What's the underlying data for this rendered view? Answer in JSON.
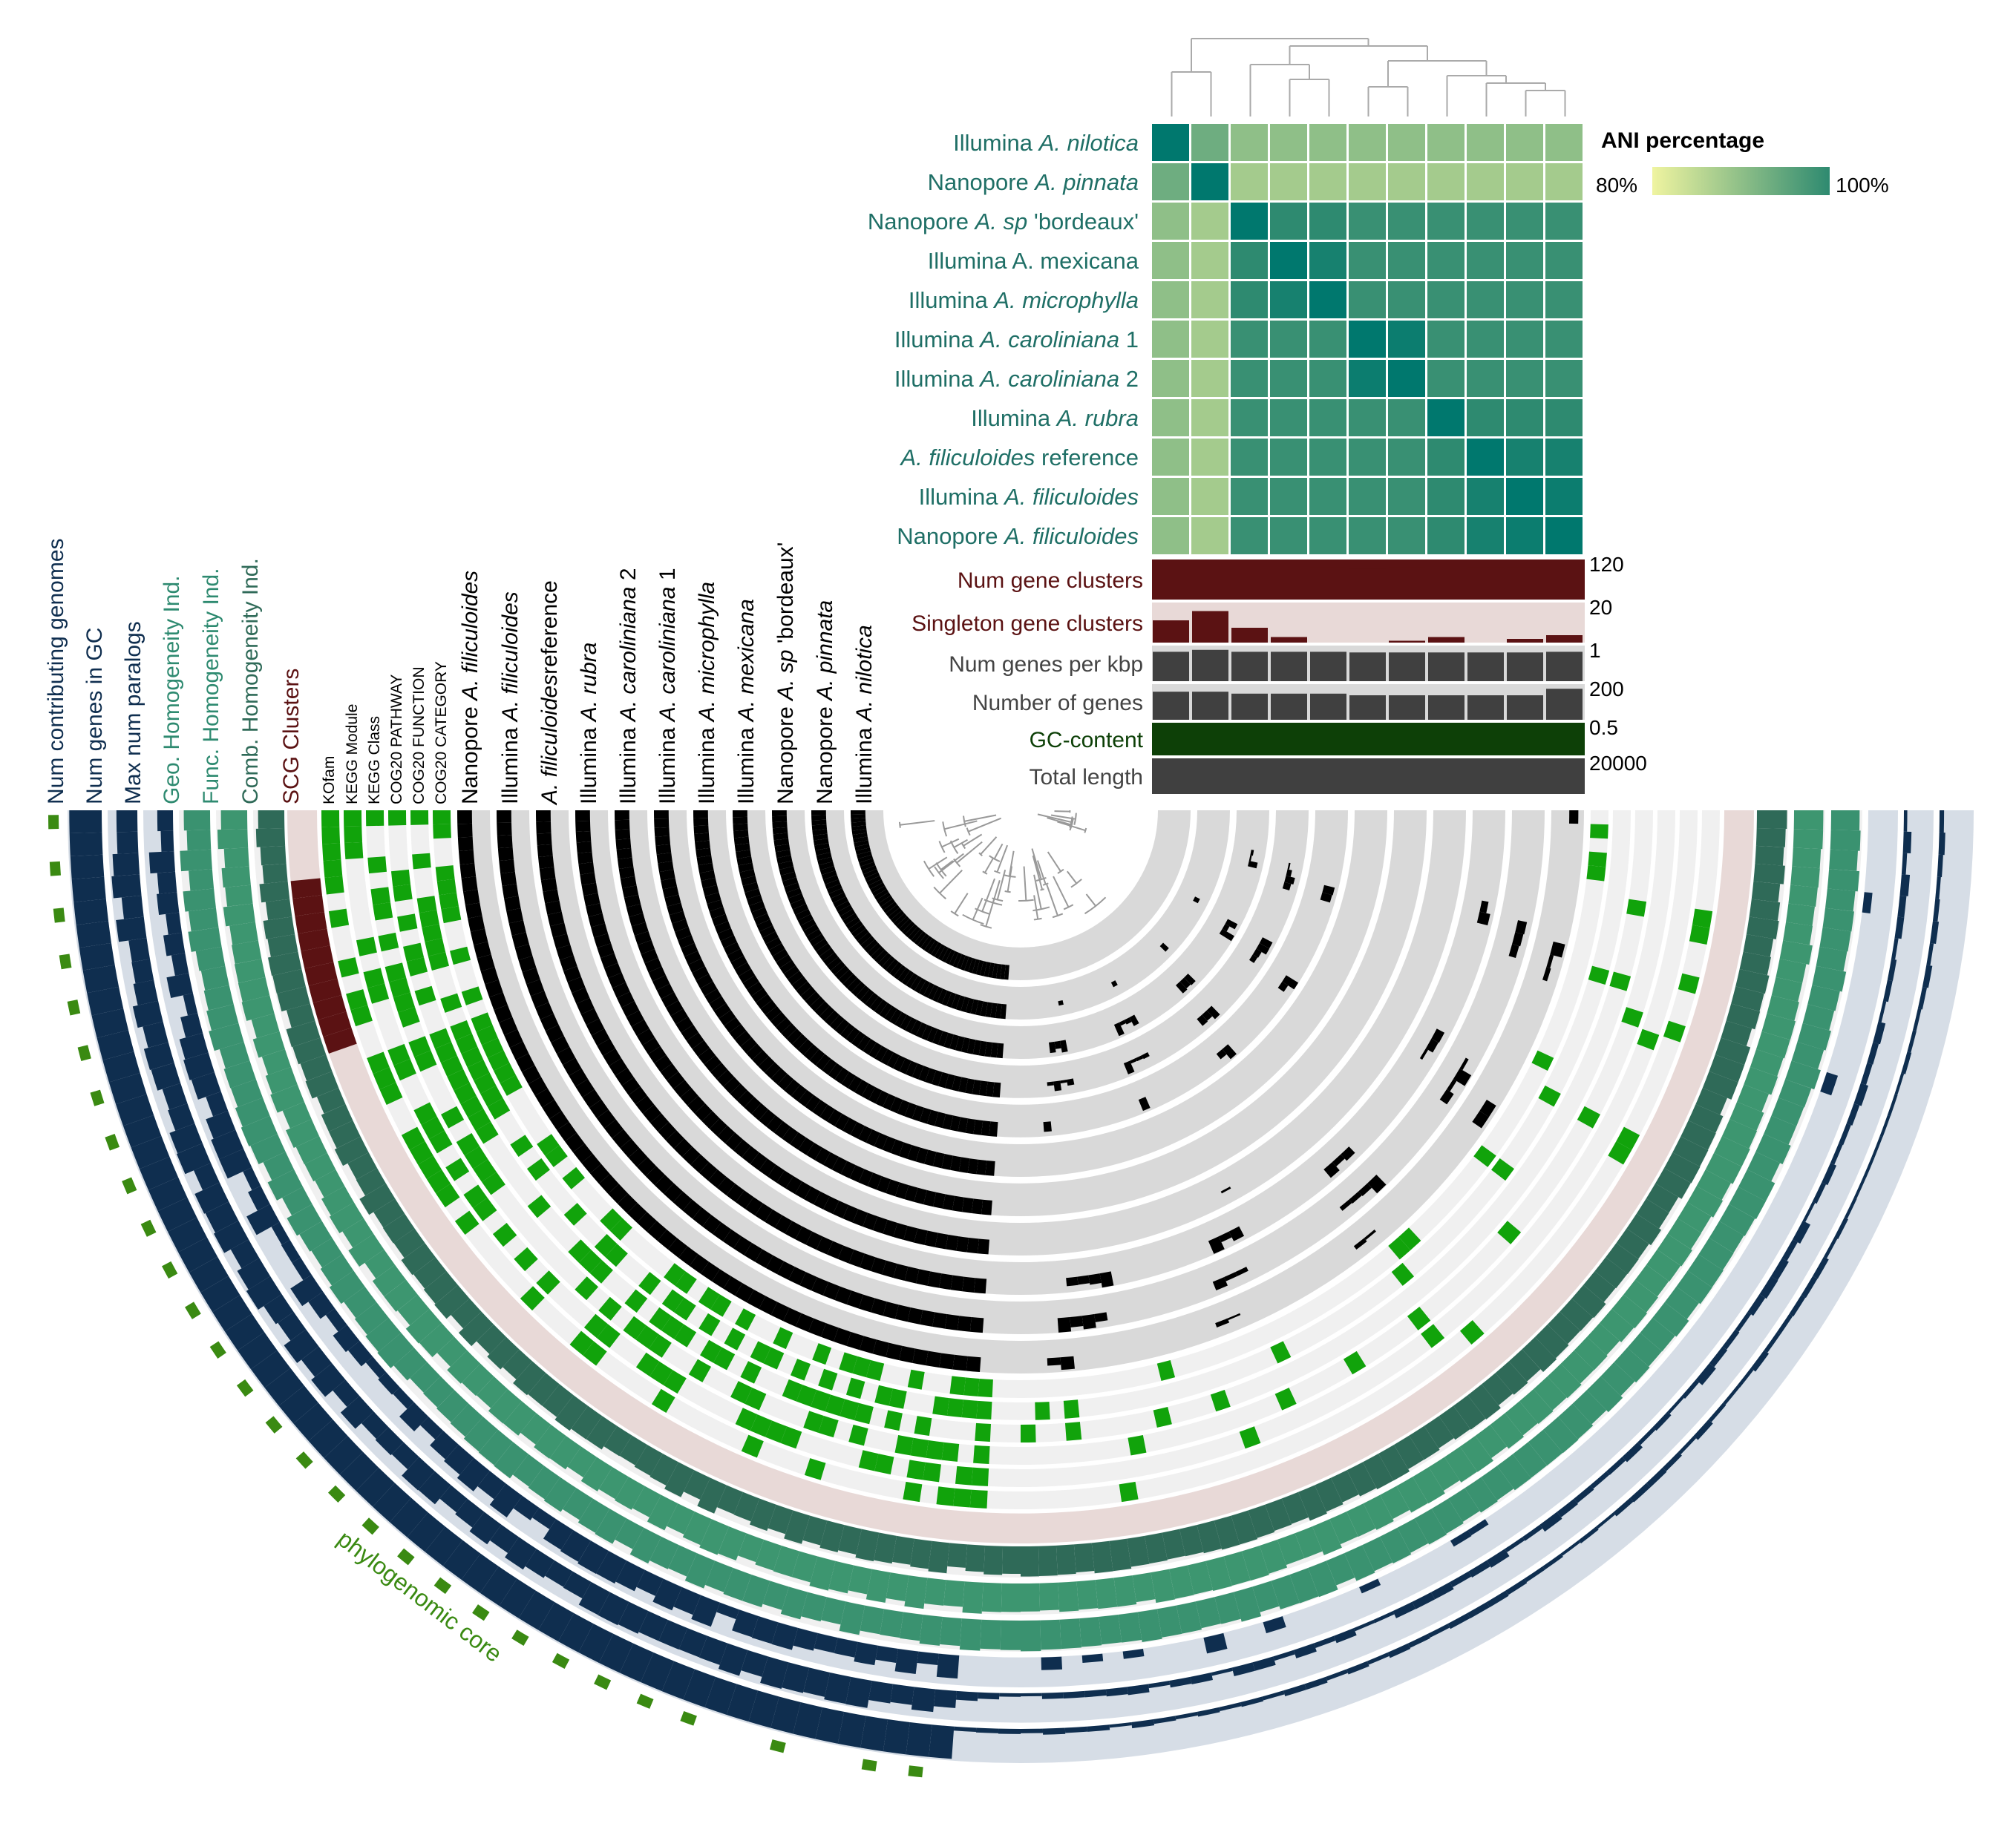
{
  "genomes": [
    {
      "prefix": "Illumina ",
      "species": "A. nilotica",
      "suffix": ""
    },
    {
      "prefix": "Nanopore ",
      "species": "A. pinnata",
      "suffix": ""
    },
    {
      "prefix": "Nanopore ",
      "species": "A. sp",
      "suffix": " 'bordeaux'"
    },
    {
      "prefix": "Illumina A. mexicana",
      "species": "",
      "suffix": ""
    },
    {
      "prefix": "Illumina ",
      "species": "A. microphylla",
      "suffix": ""
    },
    {
      "prefix": "Illumina ",
      "species": "A. caroliniana",
      "suffix": " 1"
    },
    {
      "prefix": "Illumina ",
      "species": "A. caroliniana",
      "suffix": " 2"
    },
    {
      "prefix": "Illumina ",
      "species": "A. rubra",
      "suffix": ""
    },
    {
      "prefix": "",
      "species": "A. filiculoides",
      "suffix": " reference"
    },
    {
      "prefix": "Illumina ",
      "species": "A. filiculoides",
      "suffix": ""
    },
    {
      "prefix": "Nanopore ",
      "species": "A. filiculoides",
      "suffix": ""
    }
  ],
  "ani_legend": {
    "title": "ANI percentage",
    "min_label": "80%",
    "max_label": "100%",
    "colors": [
      "#eff4a0",
      "#2e8a70"
    ]
  },
  "ani_matrix": [
    [
      100,
      92,
      89,
      89,
      89,
      89,
      89,
      89,
      89,
      89,
      89
    ],
    [
      92,
      100,
      87,
      87,
      87,
      87,
      87,
      87,
      87,
      87,
      87
    ],
    [
      89,
      87,
      100,
      98,
      98,
      97,
      97,
      97,
      97,
      97,
      97
    ],
    [
      89,
      87,
      98,
      100,
      99,
      97,
      97,
      97,
      97,
      97,
      97
    ],
    [
      89,
      87,
      98,
      99,
      100,
      97,
      97,
      97,
      97,
      97,
      97
    ],
    [
      89,
      87,
      97,
      97,
      97,
      100,
      99.5,
      97,
      97,
      97,
      97
    ],
    [
      89,
      87,
      97,
      97,
      97,
      99.5,
      100,
      97,
      97,
      97,
      97
    ],
    [
      89,
      87,
      97,
      97,
      97,
      97,
      97,
      100,
      98,
      98,
      98
    ],
    [
      89,
      87,
      97,
      97,
      97,
      97,
      97,
      98,
      100,
      99,
      99
    ],
    [
      89,
      87,
      97,
      97,
      97,
      97,
      97,
      98,
      99,
      100,
      99.5
    ],
    [
      89,
      87,
      97,
      97,
      97,
      97,
      97,
      98,
      99,
      99.5,
      100
    ]
  ],
  "bar_layers": [
    {
      "label": "Num gene clusters",
      "max_label": "120",
      "color": "#5b1213",
      "bg": "#5b1213",
      "values": [
        108,
        108,
        108,
        108,
        104,
        100,
        104,
        108,
        104,
        104,
        108
      ]
    },
    {
      "label": "Singleton gene clusters",
      "max_label": "20",
      "color": "#5b1213",
      "bg": "#e8d9d7",
      "values": [
        12,
        17,
        8,
        3,
        0,
        0,
        1,
        3,
        0,
        2,
        4
      ]
    },
    {
      "label": "Num genes per kbp",
      "max_label": "1",
      "color": "#404040",
      "bg": "#d9d9d9",
      "values": [
        0.9,
        0.96,
        0.9,
        0.9,
        0.9,
        0.88,
        0.88,
        0.88,
        0.88,
        0.88,
        0.9
      ]
    },
    {
      "label": "Number of genes",
      "max_label": "200",
      "color": "#404040",
      "bg": "#d9d9d9",
      "values": [
        172,
        172,
        160,
        160,
        160,
        150,
        150,
        150,
        150,
        150,
        190
      ]
    },
    {
      "label": "GC-content",
      "max_label": "0.5",
      "color": "#0d4007",
      "bg": "#0d4007",
      "values": [
        0.5,
        0.5,
        0.5,
        0.5,
        0.5,
        0.5,
        0.5,
        0.5,
        0.5,
        0.5,
        0.5
      ]
    },
    {
      "label": "Total length",
      "max_label": "20000",
      "color": "#404040",
      "bg": "#404040",
      "values": [
        20000,
        20000,
        20000,
        20000,
        20000,
        20000,
        20000,
        20000,
        20000,
        20000,
        20000
      ]
    }
  ],
  "ring_labels": [
    {
      "text": "Num contributing genomes",
      "color": "#0f2e4f"
    },
    {
      "text": "Num genes in GC",
      "color": "#0f2e4f"
    },
    {
      "text": "Max num paralogs",
      "color": "#0f2e4f"
    },
    {
      "text": "Geo. Homogeneity Ind.",
      "color": "#2e8a70"
    },
    {
      "text": "Func. Homogeneity Ind.",
      "color": "#2e8a70"
    },
    {
      "text": "Comb. Homogeneity Ind.",
      "color": "#2f6a58"
    },
    {
      "text": "SCG Clusters",
      "color": "#5b1213"
    }
  ],
  "function_labels": [
    "KOfam",
    "KEGG Module",
    "KEGG Class",
    "COG20 PATHWAY",
    "COG20 FUNCTION",
    "COG20 CATEGORY"
  ],
  "genome_ring_labels": [
    {
      "prefix": "Nanopore ",
      "species": "A. filiculoides",
      "suffix": ""
    },
    {
      "prefix": "Illumina ",
      "species": "A. filiculoides",
      "suffix": ""
    },
    {
      "prefix": "",
      "species": "A. filiculoides",
      "suffix": "reference"
    },
    {
      "prefix": "Illumina ",
      "species": "A. rubra",
      "suffix": ""
    },
    {
      "prefix": "Illumina ",
      "species": "A. caroliniana",
      "suffix": " 2"
    },
    {
      "prefix": "Illumina ",
      "species": "A. caroliniana",
      "suffix": " 1"
    },
    {
      "prefix": "Illumina ",
      "species": "A. microphylla",
      "suffix": ""
    },
    {
      "prefix": "Illumina ",
      "species": "A. mexicana",
      "suffix": ""
    },
    {
      "prefix": "Nanopore ",
      "species": "A. sp",
      "suffix": " 'bordeaux'"
    },
    {
      "prefix": "Nanopore ",
      "species": "A. pinnata",
      "suffix": ""
    },
    {
      "prefix": "Illumina ",
      "species": "A. nilotica",
      "suffix": ""
    }
  ],
  "core_label": "phylogenomic core",
  "colors": {
    "navy": "#0f2e4f",
    "navy_bg": "#d6dde6",
    "teal": "#3d9670",
    "teal_dark": "#2f6a58",
    "maroon": "#5b1213",
    "pink_bg": "#e8d9d7",
    "green": "#11a30b",
    "core_green": "#3a8a12",
    "black": "#000000",
    "grey_bg": "#d9d9d9",
    "light_bg": "#f0f0f0",
    "ani_text": "#1f6f66"
  }
}
